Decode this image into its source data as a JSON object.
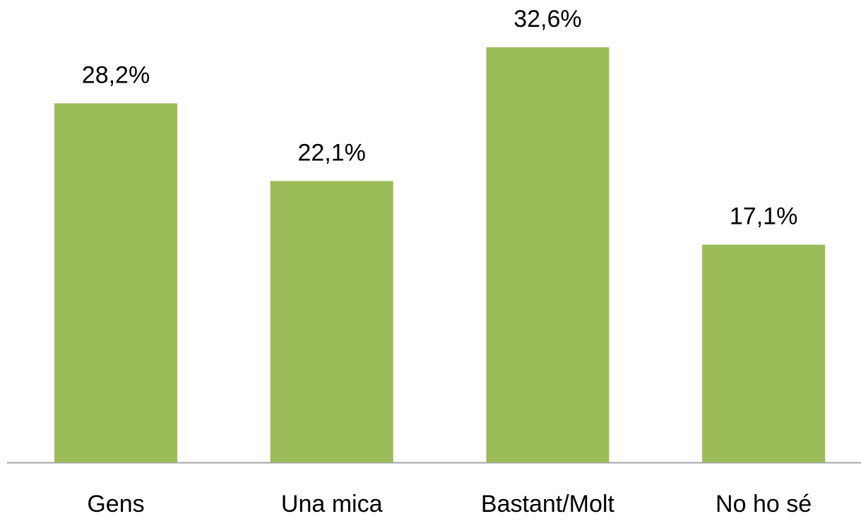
{
  "chart_data": {
    "type": "bar",
    "categories": [
      "Gens",
      "Una mica",
      "Bastant/Molt",
      "No ho sé"
    ],
    "values": [
      28.2,
      22.1,
      32.6,
      17.1
    ],
    "value_labels": [
      "28,2%",
      "22,1%",
      "32,6%",
      "17,1%"
    ],
    "color": "#9bbb59"
  }
}
